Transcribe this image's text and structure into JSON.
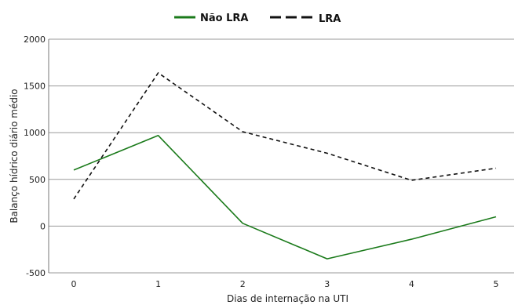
{
  "chart_data": {
    "type": "line",
    "x": [
      0,
      1,
      2,
      3,
      4,
      5
    ],
    "x_tick_labels": [
      "0",
      "1",
      "2",
      "3",
      "4",
      "5"
    ],
    "xlabel": "Dias de internação na UTI",
    "ylabel": "Balanço hídrico diário médio",
    "ylim": [
      -500,
      2000
    ],
    "y_ticks": [
      -500,
      0,
      500,
      1000,
      1500,
      2000
    ],
    "y_tick_labels": [
      "-500",
      "0",
      "500",
      "1000",
      "1500",
      "2000"
    ],
    "grid": "horizontal",
    "legend_position": "top-center",
    "series": [
      {
        "name": "Não LRA",
        "values": [
          600,
          970,
          30,
          -350,
          -140,
          100
        ],
        "color": "#1a7a1a",
        "style": "solid"
      },
      {
        "name": "LRA",
        "values": [
          290,
          1640,
          1010,
          780,
          490,
          620
        ],
        "color": "#111111",
        "style": "dashed"
      }
    ]
  }
}
